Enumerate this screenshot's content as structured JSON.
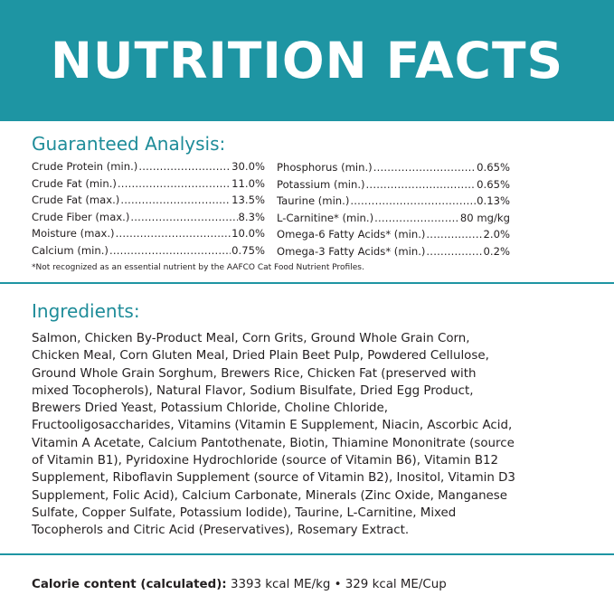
{
  "banner": {
    "title": "NUTRITION FACTS",
    "color": "#1e95a3"
  },
  "guaranteed_analysis": {
    "heading": "Guaranteed Analysis:",
    "left_column": [
      {
        "name": "Crude Protein (min.)",
        "value": "30.0%"
      },
      {
        "name": "Crude Fat (min.)",
        "value": "11.0%"
      },
      {
        "name": "Crude Fat (max.)",
        "value": "13.5%"
      },
      {
        "name": "Crude Fiber (max.)",
        "value": "8.3%"
      },
      {
        "name": "Moisture (max.)",
        "value": "10.0%"
      },
      {
        "name": "Calcium (min.)",
        "value": "0.75%"
      }
    ],
    "right_column": [
      {
        "name": "Phosphorus (min.)",
        "value": "0.65%"
      },
      {
        "name": "Potassium (min.)",
        "value": "0.65%"
      },
      {
        "name": "Taurine (min.)",
        "value": "0.13%"
      },
      {
        "name": "L-Carnitine* (min.)",
        "value": "80 mg/kg"
      },
      {
        "name": "Omega-6 Fatty Acids* (min.)",
        "value": "2.0%"
      },
      {
        "name": "Omega-3 Fatty Acids* (min.)",
        "value": "0.2%"
      }
    ],
    "footnote": "*Not recognized as an essential nutrient by the AAFCO Cat Food Nutrient Profiles."
  },
  "ingredients": {
    "heading": "Ingredients:",
    "text": "Salmon, Chicken By-Product Meal, Corn Grits, Ground Whole Grain Corn,\nChicken Meal, Corn Gluten Meal, Dried Plain Beet Pulp, Powdered Cellulose,\nGround Whole Grain Sorghum, Brewers Rice, Chicken Fat (preserved with\nmixed Tocopherols), Natural Flavor, Sodium Bisulfate, Dried Egg Product,\nBrewers Dried Yeast, Potassium Chloride, Choline Chloride,\nFructooligosaccharides, Vitamins (Vitamin E Supplement, Niacin, Ascorbic Acid,\nVitamin A Acetate, Calcium Pantothenate, Biotin, Thiamine Mononitrate (source\nof Vitamin B1), Pyridoxine Hydrochloride (source of Vitamin B6), Vitamin B12\nSupplement, Riboflavin Supplement (source of Vitamin B2), Inositol, Vitamin D3\nSupplement, Folic Acid), Calcium Carbonate, Minerals (Zinc Oxide, Manganese\nSulfate, Copper Sulfate, Potassium Iodide), Taurine, L-Carnitine, Mixed\nTocopherols and Citric Acid (Preservatives), Rosemary Extract."
  },
  "calorie": {
    "label": "Calorie content (calculated):",
    "value": "3393 kcal ME/kg • 329 kcal ME/Cup"
  }
}
